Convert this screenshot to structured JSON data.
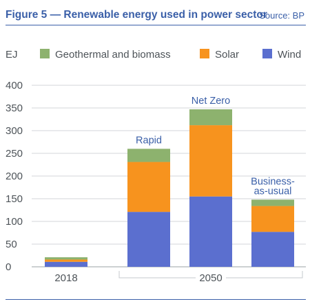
{
  "header": {
    "title": "Figure 5 — Renewable energy used in power sector",
    "source": "Source: BP"
  },
  "chart_data": {
    "type": "bar",
    "stacked": true,
    "ylabel": "EJ",
    "ylim": [
      0,
      400
    ],
    "yticks": [
      0,
      50,
      100,
      150,
      200,
      250,
      300,
      350,
      400
    ],
    "grid": true,
    "legend_position": "top",
    "categories": [
      "2018",
      "Rapid",
      "Net Zero",
      "Business-as-usual"
    ],
    "bar_labels": [
      "",
      "Rapid",
      "Net Zero",
      "Business-\nas-usual"
    ],
    "x_groups": [
      {
        "label": "2018",
        "bars": [
          0
        ]
      },
      {
        "label": "2050",
        "bars": [
          1,
          2,
          3
        ]
      }
    ],
    "series": [
      {
        "name": "Wind",
        "color": "#5b6fcf",
        "values": [
          11,
          121,
          155,
          77
        ]
      },
      {
        "name": "Solar",
        "color": "#f7931e",
        "values": [
          5,
          110,
          157,
          57
        ]
      },
      {
        "name": "Geothermal and biomass",
        "color": "#8db26e",
        "values": [
          5,
          29,
          35,
          14
        ]
      }
    ],
    "legend_order": [
      "Geothermal and biomass",
      "Solar",
      "Wind"
    ]
  }
}
